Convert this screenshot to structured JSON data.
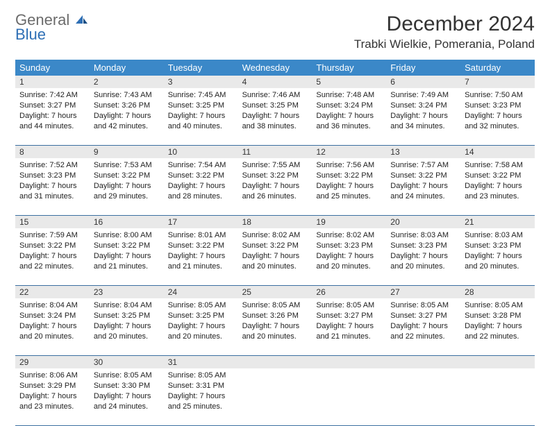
{
  "logo": {
    "general": "General",
    "blue": "Blue"
  },
  "header": {
    "month_title": "December 2024",
    "location": "Trabki Wielkie, Pomerania, Poland"
  },
  "day_names": [
    "Sunday",
    "Monday",
    "Tuesday",
    "Wednesday",
    "Thursday",
    "Friday",
    "Saturday"
  ],
  "colors": {
    "header_bg": "#3b88c8",
    "row_divider": "#3b6fa0",
    "daynum_bg": "#e9e9e9",
    "text": "#333333"
  },
  "weeks": [
    [
      {
        "num": "1",
        "sunrise": "Sunrise: 7:42 AM",
        "sunset": "Sunset: 3:27 PM",
        "daylight": "Daylight: 7 hours and 44 minutes."
      },
      {
        "num": "2",
        "sunrise": "Sunrise: 7:43 AM",
        "sunset": "Sunset: 3:26 PM",
        "daylight": "Daylight: 7 hours and 42 minutes."
      },
      {
        "num": "3",
        "sunrise": "Sunrise: 7:45 AM",
        "sunset": "Sunset: 3:25 PM",
        "daylight": "Daylight: 7 hours and 40 minutes."
      },
      {
        "num": "4",
        "sunrise": "Sunrise: 7:46 AM",
        "sunset": "Sunset: 3:25 PM",
        "daylight": "Daylight: 7 hours and 38 minutes."
      },
      {
        "num": "5",
        "sunrise": "Sunrise: 7:48 AM",
        "sunset": "Sunset: 3:24 PM",
        "daylight": "Daylight: 7 hours and 36 minutes."
      },
      {
        "num": "6",
        "sunrise": "Sunrise: 7:49 AM",
        "sunset": "Sunset: 3:24 PM",
        "daylight": "Daylight: 7 hours and 34 minutes."
      },
      {
        "num": "7",
        "sunrise": "Sunrise: 7:50 AM",
        "sunset": "Sunset: 3:23 PM",
        "daylight": "Daylight: 7 hours and 32 minutes."
      }
    ],
    [
      {
        "num": "8",
        "sunrise": "Sunrise: 7:52 AM",
        "sunset": "Sunset: 3:23 PM",
        "daylight": "Daylight: 7 hours and 31 minutes."
      },
      {
        "num": "9",
        "sunrise": "Sunrise: 7:53 AM",
        "sunset": "Sunset: 3:22 PM",
        "daylight": "Daylight: 7 hours and 29 minutes."
      },
      {
        "num": "10",
        "sunrise": "Sunrise: 7:54 AM",
        "sunset": "Sunset: 3:22 PM",
        "daylight": "Daylight: 7 hours and 28 minutes."
      },
      {
        "num": "11",
        "sunrise": "Sunrise: 7:55 AM",
        "sunset": "Sunset: 3:22 PM",
        "daylight": "Daylight: 7 hours and 26 minutes."
      },
      {
        "num": "12",
        "sunrise": "Sunrise: 7:56 AM",
        "sunset": "Sunset: 3:22 PM",
        "daylight": "Daylight: 7 hours and 25 minutes."
      },
      {
        "num": "13",
        "sunrise": "Sunrise: 7:57 AM",
        "sunset": "Sunset: 3:22 PM",
        "daylight": "Daylight: 7 hours and 24 minutes."
      },
      {
        "num": "14",
        "sunrise": "Sunrise: 7:58 AM",
        "sunset": "Sunset: 3:22 PM",
        "daylight": "Daylight: 7 hours and 23 minutes."
      }
    ],
    [
      {
        "num": "15",
        "sunrise": "Sunrise: 7:59 AM",
        "sunset": "Sunset: 3:22 PM",
        "daylight": "Daylight: 7 hours and 22 minutes."
      },
      {
        "num": "16",
        "sunrise": "Sunrise: 8:00 AM",
        "sunset": "Sunset: 3:22 PM",
        "daylight": "Daylight: 7 hours and 21 minutes."
      },
      {
        "num": "17",
        "sunrise": "Sunrise: 8:01 AM",
        "sunset": "Sunset: 3:22 PM",
        "daylight": "Daylight: 7 hours and 21 minutes."
      },
      {
        "num": "18",
        "sunrise": "Sunrise: 8:02 AM",
        "sunset": "Sunset: 3:22 PM",
        "daylight": "Daylight: 7 hours and 20 minutes."
      },
      {
        "num": "19",
        "sunrise": "Sunrise: 8:02 AM",
        "sunset": "Sunset: 3:23 PM",
        "daylight": "Daylight: 7 hours and 20 minutes."
      },
      {
        "num": "20",
        "sunrise": "Sunrise: 8:03 AM",
        "sunset": "Sunset: 3:23 PM",
        "daylight": "Daylight: 7 hours and 20 minutes."
      },
      {
        "num": "21",
        "sunrise": "Sunrise: 8:03 AM",
        "sunset": "Sunset: 3:23 PM",
        "daylight": "Daylight: 7 hours and 20 minutes."
      }
    ],
    [
      {
        "num": "22",
        "sunrise": "Sunrise: 8:04 AM",
        "sunset": "Sunset: 3:24 PM",
        "daylight": "Daylight: 7 hours and 20 minutes."
      },
      {
        "num": "23",
        "sunrise": "Sunrise: 8:04 AM",
        "sunset": "Sunset: 3:25 PM",
        "daylight": "Daylight: 7 hours and 20 minutes."
      },
      {
        "num": "24",
        "sunrise": "Sunrise: 8:05 AM",
        "sunset": "Sunset: 3:25 PM",
        "daylight": "Daylight: 7 hours and 20 minutes."
      },
      {
        "num": "25",
        "sunrise": "Sunrise: 8:05 AM",
        "sunset": "Sunset: 3:26 PM",
        "daylight": "Daylight: 7 hours and 20 minutes."
      },
      {
        "num": "26",
        "sunrise": "Sunrise: 8:05 AM",
        "sunset": "Sunset: 3:27 PM",
        "daylight": "Daylight: 7 hours and 21 minutes."
      },
      {
        "num": "27",
        "sunrise": "Sunrise: 8:05 AM",
        "sunset": "Sunset: 3:27 PM",
        "daylight": "Daylight: 7 hours and 22 minutes."
      },
      {
        "num": "28",
        "sunrise": "Sunrise: 8:05 AM",
        "sunset": "Sunset: 3:28 PM",
        "daylight": "Daylight: 7 hours and 22 minutes."
      }
    ],
    [
      {
        "num": "29",
        "sunrise": "Sunrise: 8:06 AM",
        "sunset": "Sunset: 3:29 PM",
        "daylight": "Daylight: 7 hours and 23 minutes."
      },
      {
        "num": "30",
        "sunrise": "Sunrise: 8:05 AM",
        "sunset": "Sunset: 3:30 PM",
        "daylight": "Daylight: 7 hours and 24 minutes."
      },
      {
        "num": "31",
        "sunrise": "Sunrise: 8:05 AM",
        "sunset": "Sunset: 3:31 PM",
        "daylight": "Daylight: 7 hours and 25 minutes."
      },
      null,
      null,
      null,
      null
    ]
  ]
}
